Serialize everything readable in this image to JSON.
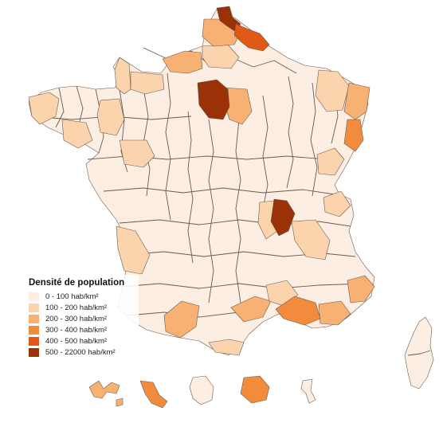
{
  "legend": {
    "title": "Densité de population",
    "classes": [
      {
        "label": "0 - 100 hab/km²",
        "color": "#fdeee3"
      },
      {
        "label": "100 - 200 hab/km²",
        "color": "#fbd3ad"
      },
      {
        "label": "200 - 300 hab/km²",
        "color": "#f7b173"
      },
      {
        "label": "300 - 400 hab/km²",
        "color": "#f38b3c"
      },
      {
        "label": "400 - 500 hab/km²",
        "color": "#e05a16"
      },
      {
        "label": "500 - 22000 hab/km²",
        "color": "#9b3106"
      }
    ]
  },
  "map": {
    "stroke_color": "#6b5a4e",
    "regions": [
      {
        "id": "metropole",
        "class": 0
      },
      {
        "id": "nord",
        "class": 5
      },
      {
        "id": "pas-de-calais",
        "class": 2
      },
      {
        "id": "somme",
        "class": 1
      },
      {
        "id": "ardennes",
        "class": 4
      },
      {
        "id": "seine-maritime",
        "class": 2
      },
      {
        "id": "calvados",
        "class": 1
      },
      {
        "id": "manche",
        "class": 1
      },
      {
        "id": "finistere",
        "class": 1
      },
      {
        "id": "ille-et-vilaine",
        "class": 1
      },
      {
        "id": "loire-atlantique",
        "class": 1
      },
      {
        "id": "maine-et-loire",
        "class": 1
      },
      {
        "id": "paris-region",
        "class": 5
      },
      {
        "id": "seine-et-marne",
        "class": 2
      },
      {
        "id": "bas-rhin",
        "class": 2
      },
      {
        "id": "haut-rhin",
        "class": 3
      },
      {
        "id": "moselle",
        "class": 1
      },
      {
        "id": "doubs",
        "class": 1
      },
      {
        "id": "rhone",
        "class": 5
      },
      {
        "id": "loire",
        "class": 1
      },
      {
        "id": "isere",
        "class": 1
      },
      {
        "id": "haute-savoie",
        "class": 1
      },
      {
        "id": "gironde",
        "class": 1
      },
      {
        "id": "haute-garonne",
        "class": 2
      },
      {
        "id": "herault",
        "class": 2
      },
      {
        "id": "gard",
        "class": 1
      },
      {
        "id": "bouches-du-rhone",
        "class": 3
      },
      {
        "id": "var",
        "class": 2
      },
      {
        "id": "alpes-maritimes",
        "class": 2
      },
      {
        "id": "pyrenees-orientales",
        "class": 1
      },
      {
        "id": "corse",
        "class": 0
      },
      {
        "id": "guadeloupe",
        "class": 2
      },
      {
        "id": "martinique",
        "class": 3
      },
      {
        "id": "guyane",
        "class": 0
      },
      {
        "id": "reunion",
        "class": 3
      },
      {
        "id": "mayotte",
        "class": 0
      }
    ]
  }
}
